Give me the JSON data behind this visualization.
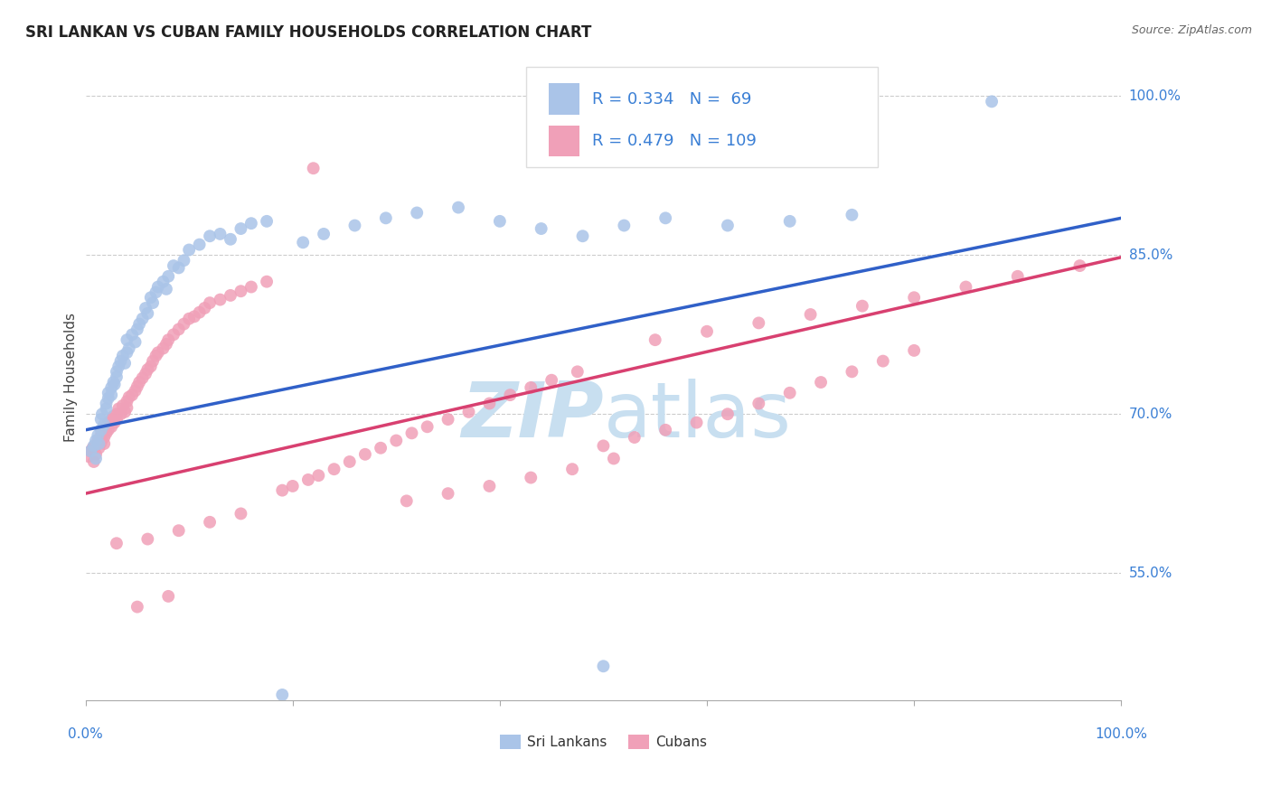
{
  "title": "SRI LANKAN VS CUBAN FAMILY HOUSEHOLDS CORRELATION CHART",
  "source": "Source: ZipAtlas.com",
  "ylabel": "Family Households",
  "y_tick_labels": [
    "55.0%",
    "70.0%",
    "85.0%",
    "100.0%"
  ],
  "y_tick_values": [
    0.55,
    0.7,
    0.85,
    1.0
  ],
  "x_range": [
    0.0,
    1.0
  ],
  "y_range": [
    0.43,
    1.04
  ],
  "legend_entries": [
    {
      "R": 0.334,
      "N": 69
    },
    {
      "R": 0.479,
      "N": 109
    }
  ],
  "sri_lankans_color": "#aac4e8",
  "cubans_color": "#f0a0b8",
  "regression_blue": "#3060c8",
  "regression_pink": "#d84070",
  "legend_text_color": "#3a7fd5",
  "watermark_color": "#c8dff0",
  "right_label_color": "#3a7fd5",
  "bottom_label_color": "#3a7fd5",
  "blue_line_x0": 0.0,
  "blue_line_y0": 0.685,
  "blue_line_x1": 1.0,
  "blue_line_y1": 0.885,
  "pink_line_x0": 0.0,
  "pink_line_y0": 0.625,
  "pink_line_x1": 1.0,
  "pink_line_y1": 0.848
}
